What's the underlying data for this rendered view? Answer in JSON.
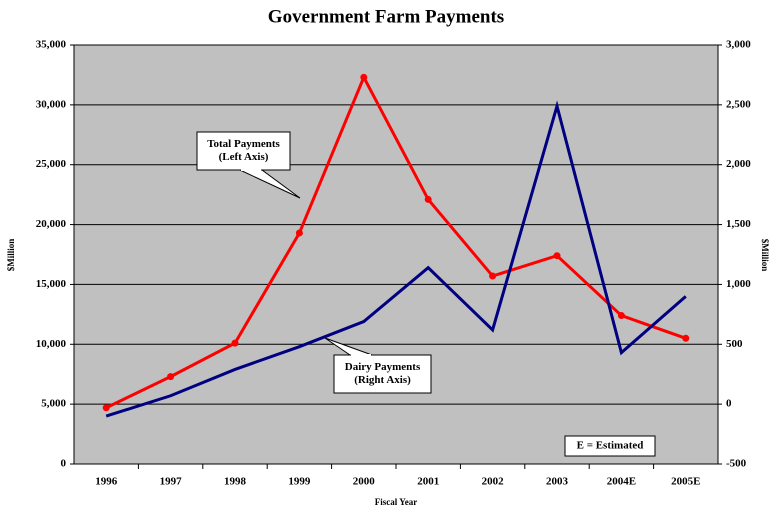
{
  "chart_data": {
    "type": "line",
    "title": "Government Farm Payments",
    "xlabel": "Fiscal Year",
    "ylabel": "$Million",
    "y2label": "$Million",
    "categories": [
      "1996",
      "1997",
      "1998",
      "1999",
      "2000",
      "2001",
      "2002",
      "2003",
      "2004E",
      "2005E"
    ],
    "series": [
      {
        "name": "Total Payments",
        "color": "#ff0000",
        "marker": true,
        "axis": "y",
        "values": [
          4700,
          7300,
          10100,
          19300,
          32300,
          22100,
          15700,
          17400,
          12400,
          10500
        ]
      },
      {
        "name": "Dairy Payments",
        "color": "#000080",
        "marker": false,
        "axis": "y2",
        "values": [
          -100,
          70,
          290,
          480,
          690,
          1140,
          620,
          2490,
          430,
          900
        ]
      }
    ],
    "ylim": [
      0,
      35000
    ],
    "yticks": [
      0,
      {
        "value": 5000,
        "label": "5,000"
      },
      {
        "value": 10000,
        "label": "10,000"
      },
      {
        "value": 15000,
        "label": "15,000"
      },
      {
        "value": 20000,
        "label": "20,000"
      },
      {
        "value": 25000,
        "label": "25,000"
      },
      {
        "value": 30000,
        "label": "30,000"
      },
      {
        "value": 35000,
        "label": "35,000"
      }
    ],
    "y2lim": [
      -500,
      3000
    ],
    "y2ticks": [
      -500,
      0,
      500,
      {
        "value": 1000,
        "label": "1,000"
      },
      {
        "value": 1500,
        "label": "1,500"
      },
      {
        "value": 2000,
        "label": "2,000"
      },
      {
        "value": 2500,
        "label": "2,500"
      },
      {
        "value": 3000,
        "label": "3,000"
      }
    ],
    "grid": true,
    "annotations": [
      {
        "lines": [
          "Total Payments",
          "(Left Axis)"
        ]
      },
      {
        "lines": [
          "Dairy Payments",
          "(Right Axis)"
        ]
      },
      {
        "lines": [
          "E = Estimated"
        ]
      }
    ]
  }
}
